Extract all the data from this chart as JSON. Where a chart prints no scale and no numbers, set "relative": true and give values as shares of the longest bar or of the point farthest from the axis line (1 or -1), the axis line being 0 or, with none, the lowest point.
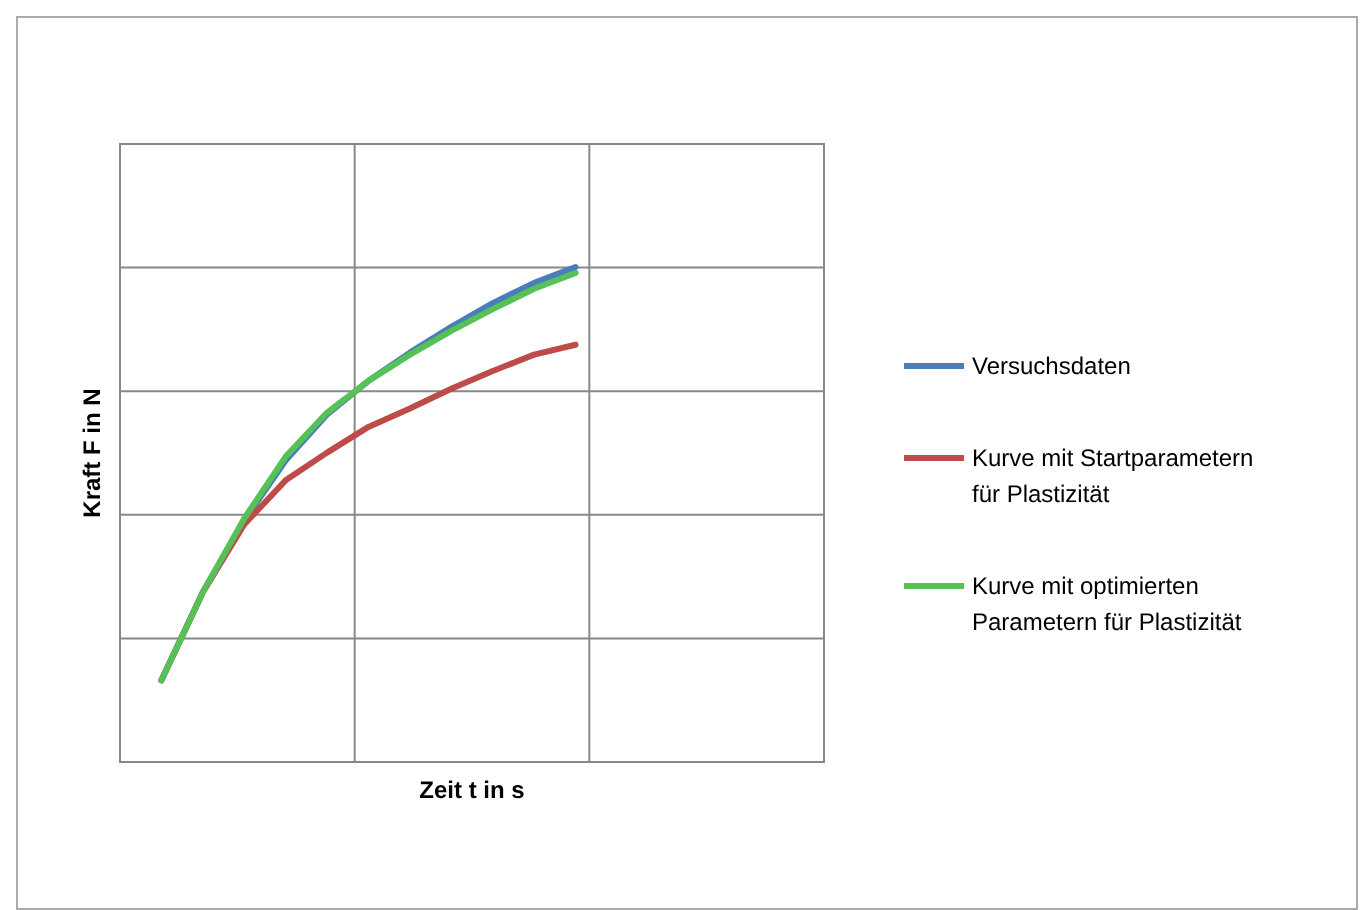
{
  "chart_data": {
    "type": "line",
    "relative": true,
    "xlabel": "Zeit t in s",
    "ylabel": "Kraft F in N",
    "grid": true,
    "legend": "right",
    "line_style": "solid",
    "marker": "none",
    "categories": [
      null,
      null,
      null,
      null,
      null,
      null,
      null,
      null,
      null,
      null,
      null
    ],
    "series": [
      {
        "name": "Versuchsdaten",
        "color": "#4a7ebb",
        "values": [
          0.165,
          0.343,
          0.488,
          0.609,
          0.702,
          0.77,
          0.827,
          0.879,
          0.927,
          0.968,
          1.0
        ]
      },
      {
        "name": "Kurve mit Startparametern für Plastizität",
        "color": "#be4b48",
        "values": [
          0.165,
          0.343,
          0.48,
          0.569,
          0.625,
          0.677,
          0.714,
          0.754,
          0.79,
          0.823,
          0.843
        ]
      },
      {
        "name": "Kurve mit optimierten Parametern für Plastizität",
        "color": "#55c157",
        "values": [
          0.165,
          0.343,
          0.492,
          0.617,
          0.706,
          0.77,
          0.823,
          0.871,
          0.915,
          0.956,
          0.988
        ]
      }
    ]
  }
}
